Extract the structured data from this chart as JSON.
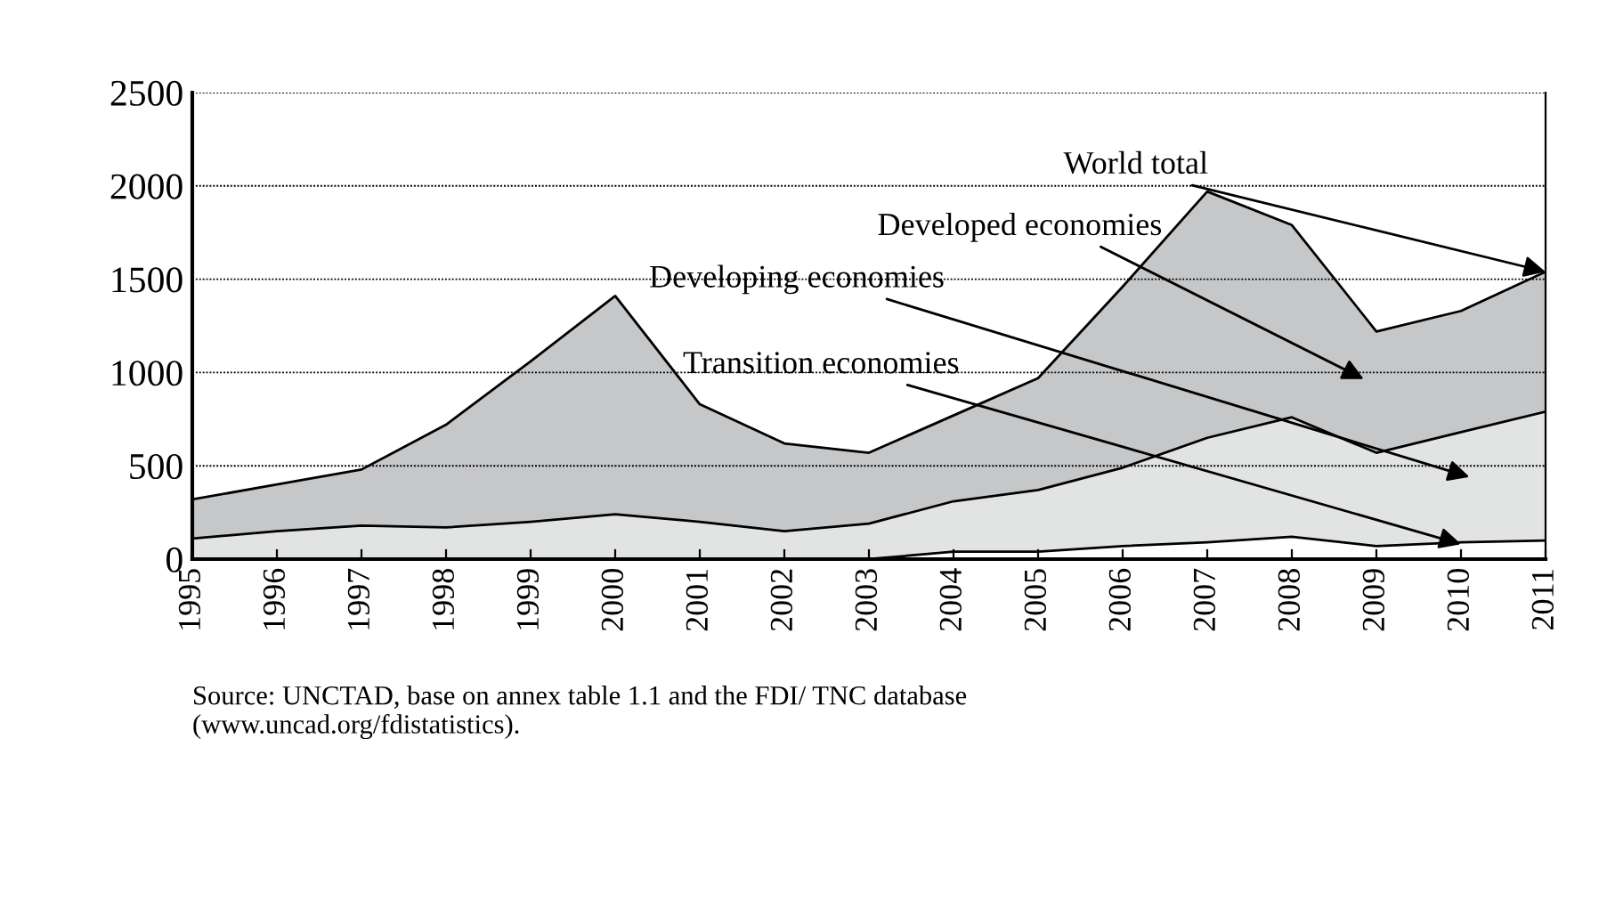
{
  "chart_data": {
    "type": "area",
    "stacked": true,
    "categories": [
      "1995",
      "1996",
      "1997",
      "1998",
      "1999",
      "2000",
      "2001",
      "2002",
      "2003",
      "2004",
      "2005",
      "2006",
      "2007",
      "2008",
      "2009",
      "2010",
      "2011"
    ],
    "series": [
      {
        "color": "#ffffff",
        "values": [
          0,
          0,
          0,
          0,
          0,
          0,
          0,
          0,
          0,
          40,
          40,
          70,
          90,
          120,
          70,
          90,
          100
        ]
      },
      {
        "color": "#e2e3e3",
        "values": [
          110,
          150,
          180,
          170,
          200,
          240,
          200,
          150,
          190,
          270,
          330,
          420,
          560,
          640,
          500,
          590,
          690
        ]
      },
      {
        "color": "#c6c7c9",
        "values": [
          210,
          250,
          300,
          550,
          860,
          1170,
          630,
          470,
          380,
          460,
          600,
          970,
          1320,
          1030,
          650,
          650,
          750
        ]
      }
    ],
    "ylim": [
      0,
      2500
    ],
    "yticks": [
      0,
      500,
      1000,
      1500,
      2000,
      2500
    ],
    "grid": "y",
    "legend": false,
    "annotations": [
      {
        "text": "World total",
        "x": "2011",
        "y": 1540
      },
      "Developed economies",
      "Developing economies",
      "Transition economies",
      "Source: UNCTAD, base on annex table 1.1 and the FDI/ TNC database\n(www.uncad.org/fdistatistics)."
    ]
  }
}
